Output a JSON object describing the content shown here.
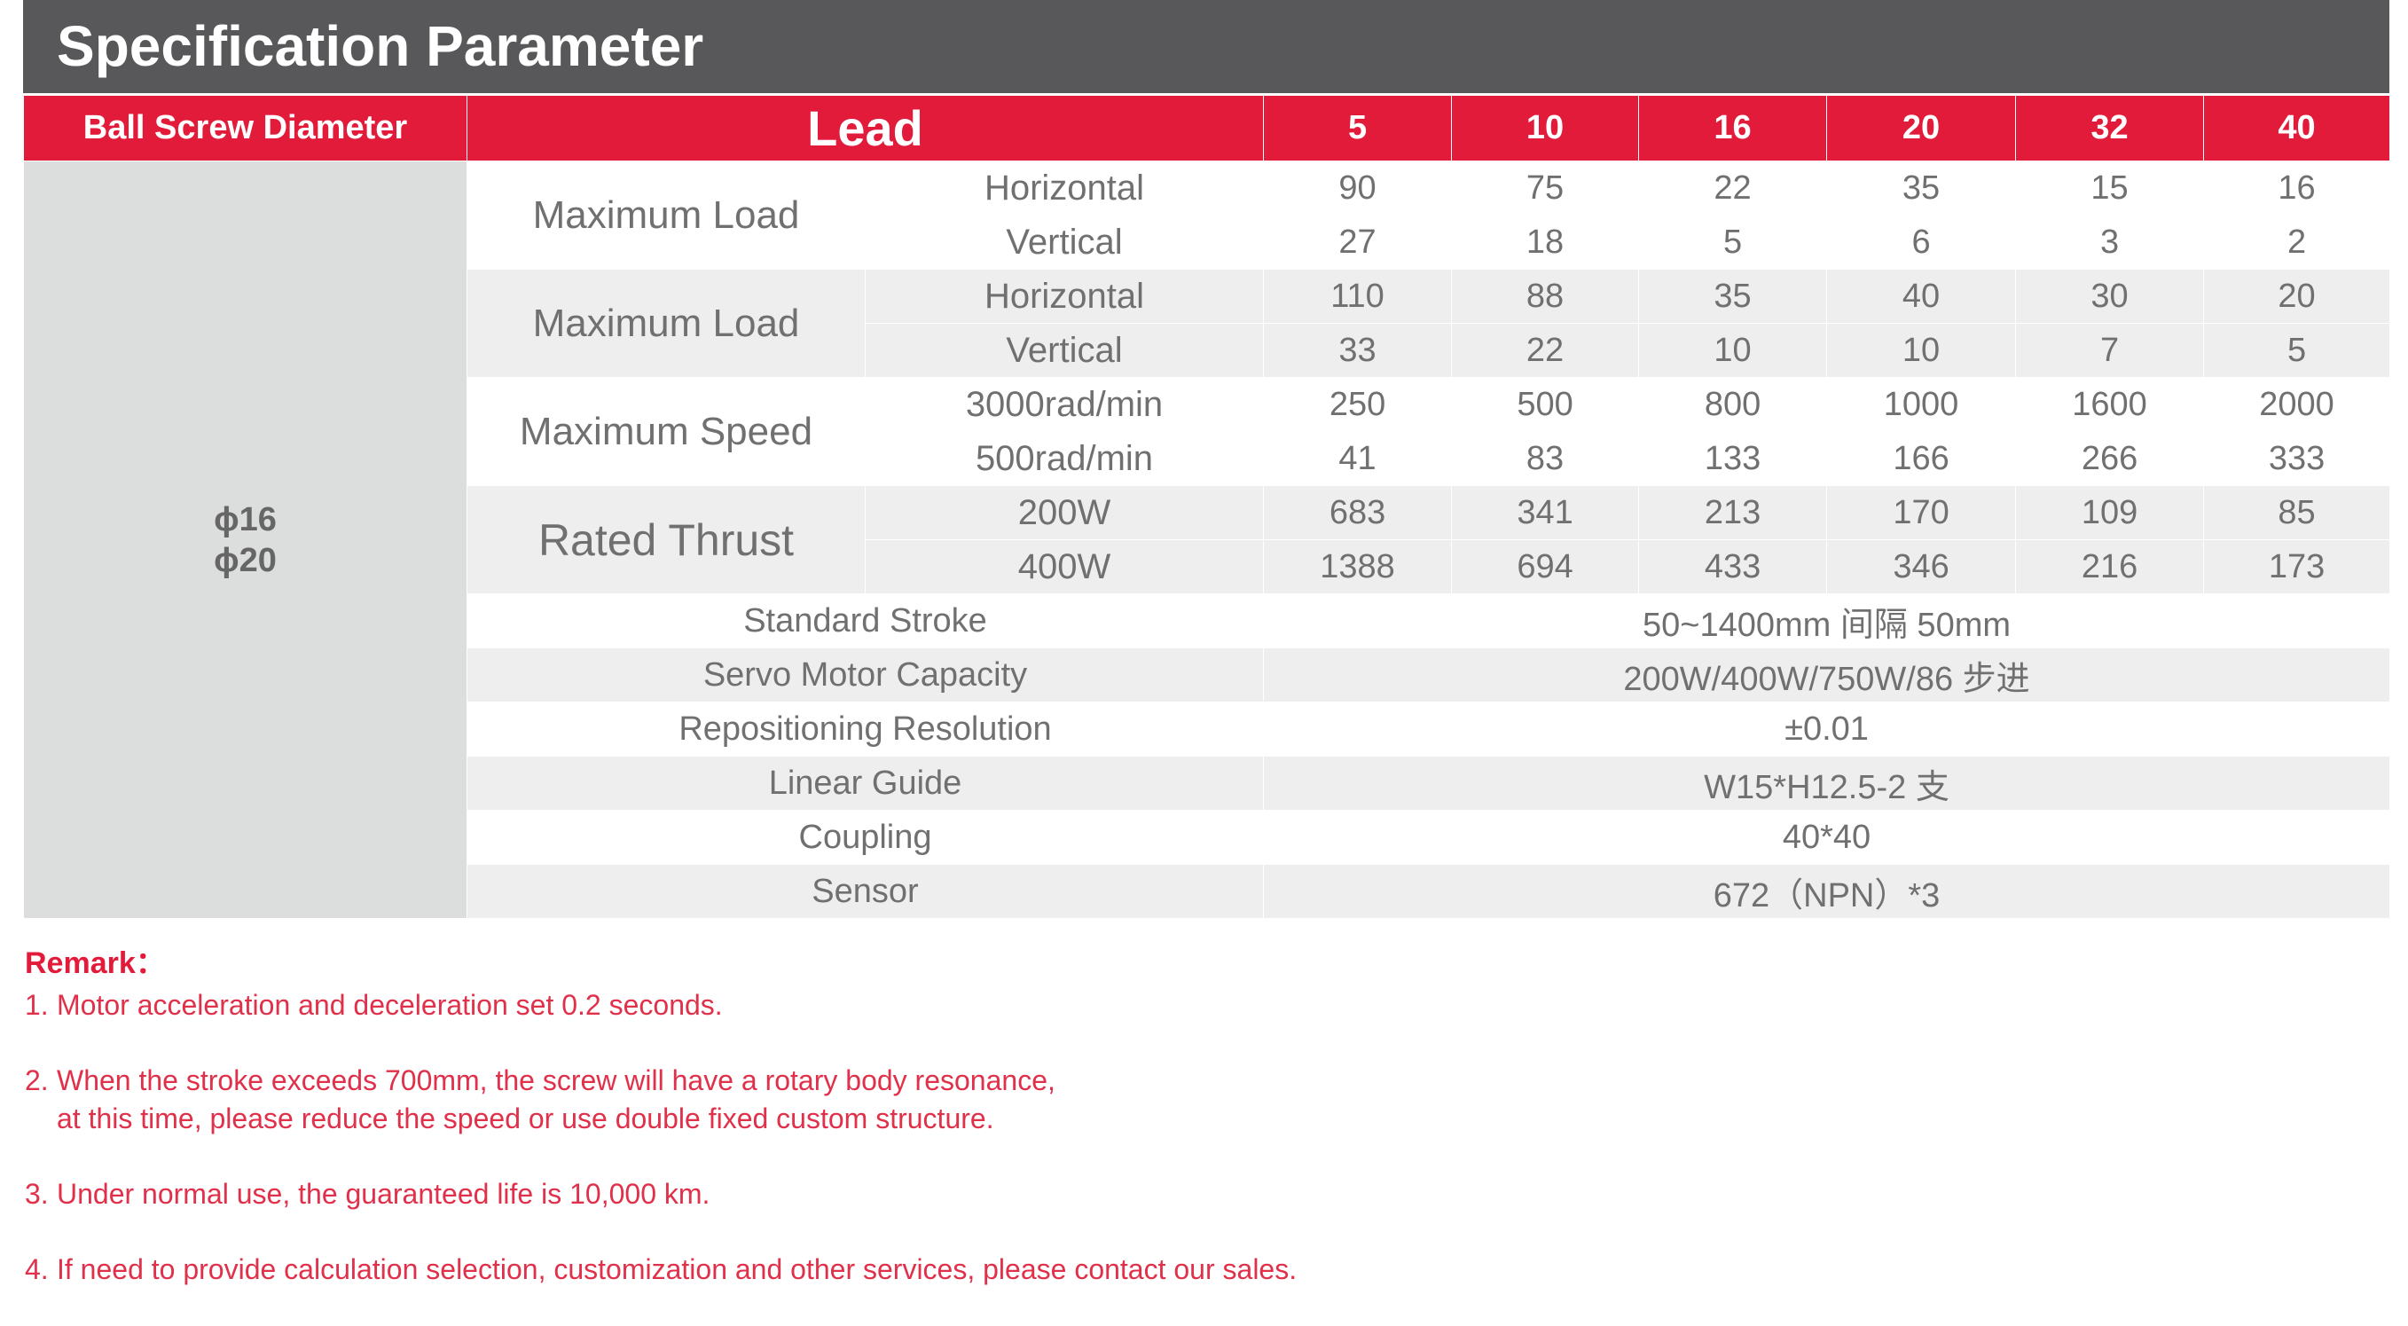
{
  "title": "Specification Parameter",
  "header": {
    "diameter": "Ball Screw Diameter",
    "lead": "Lead",
    "leads": [
      "5",
      "10",
      "16",
      "20",
      "32",
      "40"
    ]
  },
  "diameters": [
    "ϕ16",
    "ϕ20"
  ],
  "groups": [
    {
      "label": "Maximum Load",
      "rows": [
        {
          "sub": "Horizontal",
          "values": [
            "90",
            "75",
            "22",
            "35",
            "15",
            "16"
          ]
        },
        {
          "sub": "Vertical",
          "values": [
            "27",
            "18",
            "5",
            "6",
            "3",
            "2"
          ]
        }
      ]
    },
    {
      "label": "Maximum Load",
      "rows": [
        {
          "sub": "Horizontal",
          "values": [
            "110",
            "88",
            "35",
            "40",
            "30",
            "20"
          ]
        },
        {
          "sub": "Vertical",
          "values": [
            "33",
            "22",
            "10",
            "10",
            "7",
            "5"
          ]
        }
      ]
    },
    {
      "label": "Maximum Speed",
      "rows": [
        {
          "sub": "3000rad/min",
          "values": [
            "250",
            "500",
            "800",
            "1000",
            "1600",
            "2000"
          ]
        },
        {
          "sub": "500rad/min",
          "values": [
            "41",
            "83",
            "133",
            "166",
            "266",
            "333"
          ]
        }
      ]
    },
    {
      "label": "Rated Thrust",
      "rows": [
        {
          "sub": "200W",
          "values": [
            "683",
            "341",
            "213",
            "170",
            "109",
            "85"
          ]
        },
        {
          "sub": "400W",
          "values": [
            "1388",
            "694",
            "433",
            "346",
            "216",
            "173"
          ]
        }
      ]
    }
  ],
  "specs": [
    {
      "label": "Standard Stroke",
      "value": "50~1400mm 间隔 50mm"
    },
    {
      "label": "Servo Motor Capacity",
      "value": "200W/400W/750W/86 步进"
    },
    {
      "label": "Repositioning Resolution",
      "value": "±0.01"
    },
    {
      "label": "Linear Guide",
      "value": "W15*H12.5-2 支"
    },
    {
      "label": "Coupling",
      "value": "40*40"
    },
    {
      "label": "Sensor",
      "value": "672（NPN）*3"
    }
  ],
  "remark": {
    "title": "Remark：",
    "notes": [
      {
        "num": "1.",
        "lines": [
          "Motor acceleration and deceleration set 0.2 seconds."
        ]
      },
      {
        "num": "2.",
        "lines": [
          "When the stroke exceeds 700mm, the screw will have a rotary body resonance,",
          "at this time, please reduce the speed or use double fixed custom structure."
        ]
      },
      {
        "num": "3.",
        "lines": [
          "Under normal use, the guaranteed life is 10,000 km."
        ]
      },
      {
        "num": "4.",
        "lines": [
          "If need to provide calculation selection, customization and other services, please contact our sales."
        ]
      }
    ]
  },
  "colors": {
    "titlebar": "#58585a",
    "accent": "#e31b3b",
    "diameter_bg": "#dcdddd",
    "stripe": "#eeeeee",
    "text": "#707070"
  }
}
